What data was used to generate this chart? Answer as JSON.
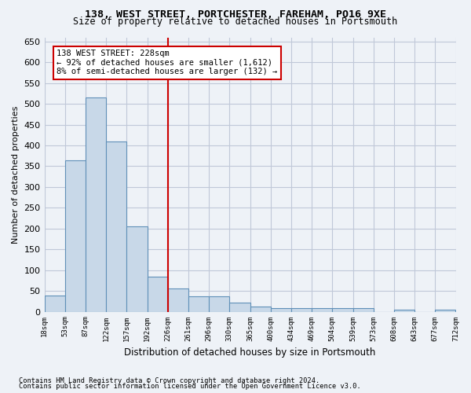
{
  "title_line1": "138, WEST STREET, PORTCHESTER, FAREHAM, PO16 9XE",
  "title_line2": "Size of property relative to detached houses in Portsmouth",
  "xlabel": "Distribution of detached houses by size in Portsmouth",
  "ylabel": "Number of detached properties",
  "bar_values": [
    38,
    365,
    515,
    410,
    205,
    85,
    55,
    37,
    37,
    22,
    12,
    8,
    8,
    8,
    8,
    8,
    0,
    5,
    0,
    5
  ],
  "bar_labels": [
    "18sqm",
    "53sqm",
    "87sqm",
    "122sqm",
    "157sqm",
    "192sqm",
    "226sqm",
    "261sqm",
    "296sqm",
    "330sqm",
    "365sqm",
    "400sqm",
    "434sqm",
    "469sqm",
    "504sqm",
    "539sqm",
    "573sqm",
    "608sqm",
    "643sqm",
    "677sqm",
    "712sqm"
  ],
  "ylim": [
    0,
    660
  ],
  "yticks": [
    0,
    50,
    100,
    150,
    200,
    250,
    300,
    350,
    400,
    450,
    500,
    550,
    600,
    650
  ],
  "bar_color": "#c8d8e8",
  "bar_edge_color": "#6090b8",
  "vline_x": 6,
  "vline_color": "#cc0000",
  "annotation_title": "138 WEST STREET: 228sqm",
  "annotation_line1": "← 92% of detached houses are smaller (1,612)",
  "annotation_line2": "8% of semi-detached houses are larger (132) →",
  "annotation_box_color": "#ffffff",
  "annotation_box_edge": "#cc0000",
  "footer_line1": "Contains HM Land Registry data © Crown copyright and database right 2024.",
  "footer_line2": "Contains public sector information licensed under the Open Government Licence v3.0.",
  "background_color": "#eef2f7",
  "plot_bg_color": "#eef2f7",
  "grid_color": "#c0c8d8"
}
